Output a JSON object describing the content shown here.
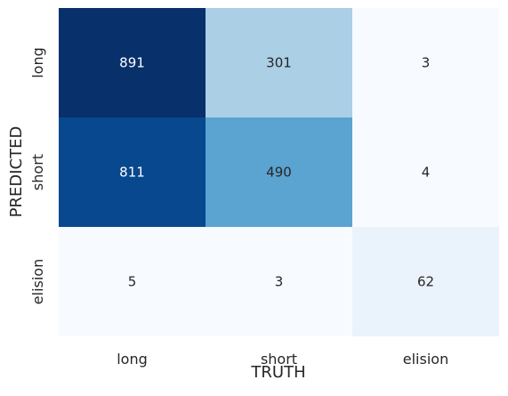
{
  "chart_data": {
    "type": "heatmap",
    "title": "",
    "xlabel": "TRUTH",
    "ylabel": "PREDICTED",
    "x_categories": [
      "long",
      "short",
      "elision"
    ],
    "y_categories": [
      "long",
      "short",
      "elision"
    ],
    "values": [
      [
        891,
        301,
        3
      ],
      [
        811,
        490,
        4
      ],
      [
        5,
        3,
        62
      ]
    ],
    "colormap": "Blues",
    "color_low": "#f7fbff",
    "color_high": "#08306b",
    "vmin": 3,
    "vmax": 891,
    "grid": false,
    "colorbar": false
  }
}
